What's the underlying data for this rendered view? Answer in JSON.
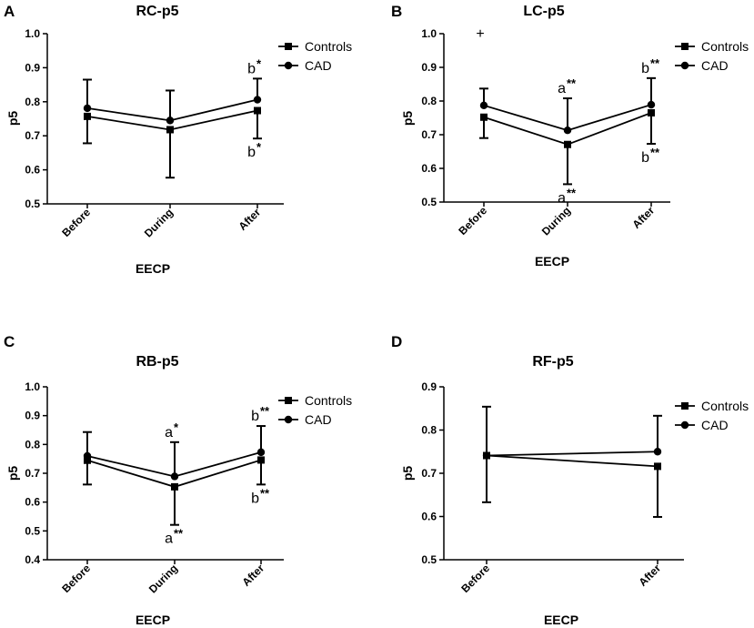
{
  "figure": {
    "legend_labels": [
      "Controls",
      "CAD"
    ]
  },
  "chart_data": [
    {
      "panel": "A",
      "type": "line",
      "title": "RC-p5",
      "xlabel": "EECP",
      "ylabel": "p5",
      "categories": [
        "Before",
        "During",
        "After"
      ],
      "ylim": [
        0.5,
        1.0
      ],
      "yticks": [
        "0.5",
        "0.6",
        "0.7",
        "0.8",
        "0.9",
        "1.0"
      ],
      "legend_position": "top-right",
      "series": [
        {
          "name": "Controls",
          "marker": "square",
          "values": [
            0.757,
            0.718,
            0.774
          ],
          "err_low": [
            0.678,
            0.577,
            0.692
          ],
          "err_high": [
            null,
            null,
            null
          ]
        },
        {
          "name": "CAD",
          "marker": "circle",
          "values": [
            0.781,
            0.745,
            0.806
          ],
          "err_low": [
            null,
            null,
            null
          ],
          "err_high": [
            0.865,
            0.833,
            0.868
          ]
        }
      ],
      "annotations": [
        {
          "letter": "b",
          "stars": "*",
          "x": "After",
          "pos": "above"
        },
        {
          "letter": "b",
          "stars": "*",
          "x": "After",
          "pos": "below"
        }
      ],
      "extra_marks": []
    },
    {
      "panel": "B",
      "type": "line",
      "title": "LC-p5",
      "xlabel": "EECP",
      "ylabel": "p5",
      "categories": [
        "Before",
        "During",
        "After"
      ],
      "ylim": [
        0.5,
        1.0
      ],
      "yticks": [
        "0.5",
        "0.6",
        "0.7",
        "0.8",
        "0.9",
        "1.0"
      ],
      "legend_position": "top-right",
      "series": [
        {
          "name": "Controls",
          "marker": "square",
          "values": [
            0.752,
            0.671,
            0.765
          ],
          "err_low": [
            0.69,
            0.553,
            0.673
          ],
          "err_high": [
            null,
            null,
            null
          ]
        },
        {
          "name": "CAD",
          "marker": "circle",
          "values": [
            0.787,
            0.713,
            0.789
          ],
          "err_low": [
            null,
            null,
            null
          ],
          "err_high": [
            0.837,
            0.808,
            0.868
          ]
        }
      ],
      "annotations": [
        {
          "letter": "a",
          "stars": "**",
          "x": "During",
          "pos": "above"
        },
        {
          "letter": "a",
          "stars": "**",
          "x": "During",
          "pos": "below"
        },
        {
          "letter": "b",
          "stars": "**",
          "x": "After",
          "pos": "above"
        },
        {
          "letter": "b",
          "stars": "**",
          "x": "After",
          "pos": "below"
        }
      ],
      "extra_marks": [
        {
          "text": "+",
          "x": "Before",
          "y": 1.0
        }
      ]
    },
    {
      "panel": "C",
      "type": "line",
      "title": "RB-p5",
      "xlabel": "EECP",
      "ylabel": "p5",
      "categories": [
        "Before",
        "During",
        "After"
      ],
      "ylim": [
        0.4,
        1.0
      ],
      "yticks": [
        "0.4",
        "0.5",
        "0.6",
        "0.7",
        "0.8",
        "0.9",
        "1.0"
      ],
      "legend_position": "top-right",
      "series": [
        {
          "name": "Controls",
          "marker": "square",
          "values": [
            0.745,
            0.653,
            0.746
          ],
          "err_low": [
            0.661,
            0.521,
            0.661
          ],
          "err_high": [
            null,
            null,
            null
          ]
        },
        {
          "name": "CAD",
          "marker": "circle",
          "values": [
            0.76,
            0.689,
            0.773
          ],
          "err_low": [
            null,
            null,
            null
          ],
          "err_high": [
            0.843,
            0.808,
            0.864
          ]
        }
      ],
      "annotations": [
        {
          "letter": "a",
          "stars": "*",
          "x": "During",
          "pos": "above"
        },
        {
          "letter": "a",
          "stars": "**",
          "x": "During",
          "pos": "below"
        },
        {
          "letter": "b",
          "stars": "**",
          "x": "After",
          "pos": "above"
        },
        {
          "letter": "b",
          "stars": "**",
          "x": "After",
          "pos": "below"
        }
      ],
      "extra_marks": []
    },
    {
      "panel": "D",
      "type": "line",
      "title": "RF-p5",
      "xlabel": "EECP",
      "ylabel": "p5",
      "categories": [
        "Before",
        "After"
      ],
      "ylim": [
        0.5,
        0.9
      ],
      "yticks": [
        "0.5",
        "0.6",
        "0.7",
        "0.8",
        "0.9"
      ],
      "legend_position": "top-right",
      "series": [
        {
          "name": "Controls",
          "marker": "square",
          "values": [
            0.741,
            0.716
          ],
          "err_low": [
            0.633,
            0.599
          ],
          "err_high": [
            null,
            null
          ]
        },
        {
          "name": "CAD",
          "marker": "circle",
          "values": [
            0.741,
            0.75
          ],
          "err_low": [
            null,
            null
          ],
          "err_high": [
            0.854,
            0.833
          ]
        }
      ],
      "annotations": [],
      "extra_marks": []
    }
  ]
}
